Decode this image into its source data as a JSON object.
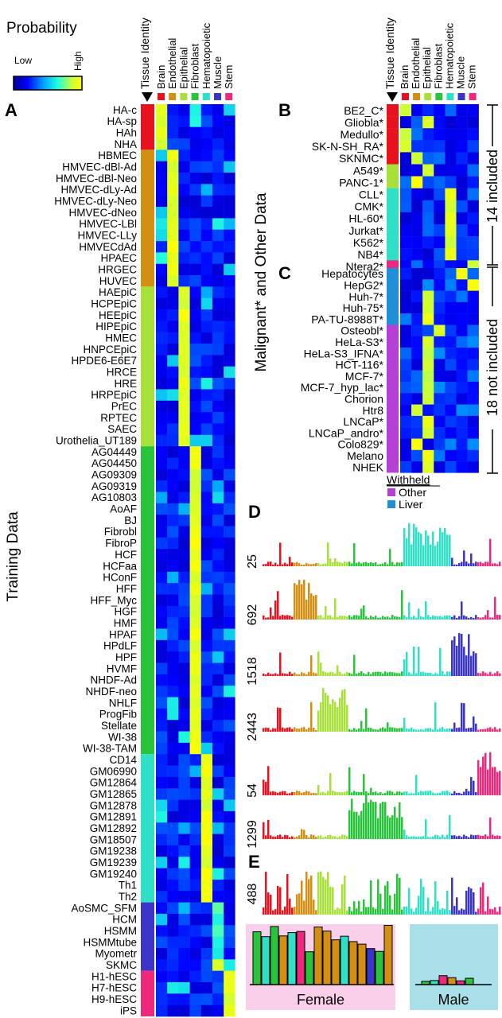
{
  "colorbar": {
    "title": "Probability",
    "low": "Low",
    "high": "High",
    "stops": [
      "#00008f",
      "#0000ff",
      "#00a8ff",
      "#22ffdd",
      "#c8ff3c",
      "#ffff00"
    ]
  },
  "headers": {
    "tissue_identity": "Tissue Identity",
    "tissues": [
      "Brain",
      "Endothelial",
      "Epithelial",
      "Fibroblast",
      "Hematopoietic",
      "Muscle",
      "Stem"
    ]
  },
  "tissue_colors": [
    "#e8121f",
    "#d28f13",
    "#a8e03a",
    "#29c43c",
    "#2fe0c6",
    "#3b34c8",
    "#f0287d"
  ],
  "panel_labels": {
    "A": "A",
    "B": "B",
    "C": "C",
    "D": "D",
    "E": "E"
  },
  "side_labels": {
    "training": "Training Data",
    "malignant": "Malignant* and Other Data",
    "included": "14 included",
    "not_included": "18 not included"
  },
  "panel_a_rows": [
    "HA-c",
    "HA-sp",
    "HAh",
    "NHA",
    "HBMEC",
    "HMVEC-dBl-Ad",
    "HMVEC-dBl-Neo",
    "HMVEC-dLy-Ad",
    "HMVEC-dLy-Neo",
    "HMVEC-dNeo",
    "HMVEC-LBl",
    "HMVEC-LLy",
    "HMVECdAd",
    "HPAEC",
    "HRGEC",
    "HUVEC",
    "HAEpiC",
    "HCPEpiC",
    "HEEpiC",
    "HIPEpiC",
    "HMEC",
    "HNPCEpiC",
    "HPDE6-E6E7",
    "HRCE",
    "HRE",
    "HRPEpiC",
    "PrEC",
    "RPTEC",
    "SAEC",
    "Urothelia_UT189",
    "AG04449",
    "AG04450",
    "AG09309",
    "AG09319",
    "AG10803",
    "AoAF",
    "BJ",
    "Fibrobl",
    "FibroP",
    "HCF",
    "HCFaa",
    "HConF",
    "HFF",
    "HFF_Myc",
    "HGF",
    "HMF",
    "HPAF",
    "HPdLF",
    "HPF",
    "HVMF",
    "NHDF-Ad",
    "NHDF-neo",
    "NHLF",
    "ProgFib",
    "Stellate",
    "WI-38",
    "WI-38-TAM",
    "CD14",
    "GM06990",
    "GM12864",
    "GM12865",
    "GM12878",
    "GM12891",
    "GM12892",
    "GM18507",
    "GM19238",
    "GM19239",
    "GM19240",
    "Th1",
    "Th2",
    "AoSMC_SFM",
    "HCM",
    "HSMM",
    "HSMMtube",
    "Myometr",
    "SKMC",
    "H1-hESC",
    "H7-hESC",
    "H9-hESC",
    "iPS"
  ],
  "panel_a_groups": [
    4,
    12,
    14,
    27,
    13,
    6,
    4
  ],
  "panel_b_rows": [
    "BE2_C*",
    "Gliobla*",
    "Medullo*",
    "SK-N-SH_RA*",
    "SKNMC*",
    "A549*",
    "PANC-1*",
    "CLL*",
    "CMK*",
    "HL-60*",
    "Jurkat*",
    "K562*",
    "NB4*",
    "Ntera2*"
  ],
  "panel_b_identity": [
    0,
    0,
    0,
    0,
    0,
    2,
    2,
    4,
    4,
    4,
    4,
    4,
    4,
    6
  ],
  "panel_b_predicted": [
    0,
    2,
    0,
    0,
    1,
    2,
    1,
    4,
    4,
    4,
    4,
    4,
    4,
    6
  ],
  "panel_c_rows": [
    "Hepatocytes",
    "HepG2*",
    "Huh-7*",
    "Huh-75*",
    "PA-TU-8988T*",
    "Osteobl*",
    "HeLa-S3*",
    "HeLa-S3_IFNA*",
    "HCT-116*",
    "MCF-7*",
    "MCF-7_hyp_lac*",
    "Chorion",
    "Htr8",
    "LNCaP*",
    "LNCaP_andro*",
    "Colo829*",
    "Melano",
    "NHEK"
  ],
  "panel_c_groups": [
    {
      "label": "Liver",
      "count": 5,
      "color": "#1f8fd8"
    },
    {
      "label": "Other",
      "count": 13,
      "color": "#b63fd8"
    }
  ],
  "panel_c_predicted": [
    5,
    6,
    2,
    2,
    2,
    3,
    2,
    2,
    2,
    2,
    2,
    2,
    1,
    2,
    2,
    1,
    2,
    2
  ],
  "withheld": {
    "title": "Withheld",
    "items": [
      {
        "label": "Other",
        "color": "#b63fd8"
      },
      {
        "label": "Liver",
        "color": "#1f8fd8"
      }
    ]
  },
  "panel_d": [
    {
      "label": "25",
      "peak": 4
    },
    {
      "label": "692",
      "peak": 1
    },
    {
      "label": "1518",
      "peak": 5
    },
    {
      "label": "2443",
      "peak": 2
    },
    {
      "label": "54",
      "peak": 6
    },
    {
      "label": "1299",
      "peak": 3
    }
  ],
  "panel_e": {
    "label": "488",
    "female": "Female",
    "male": "Male",
    "female_bg": "#f9cfe9",
    "male_bg": "#a9e0ea"
  }
}
